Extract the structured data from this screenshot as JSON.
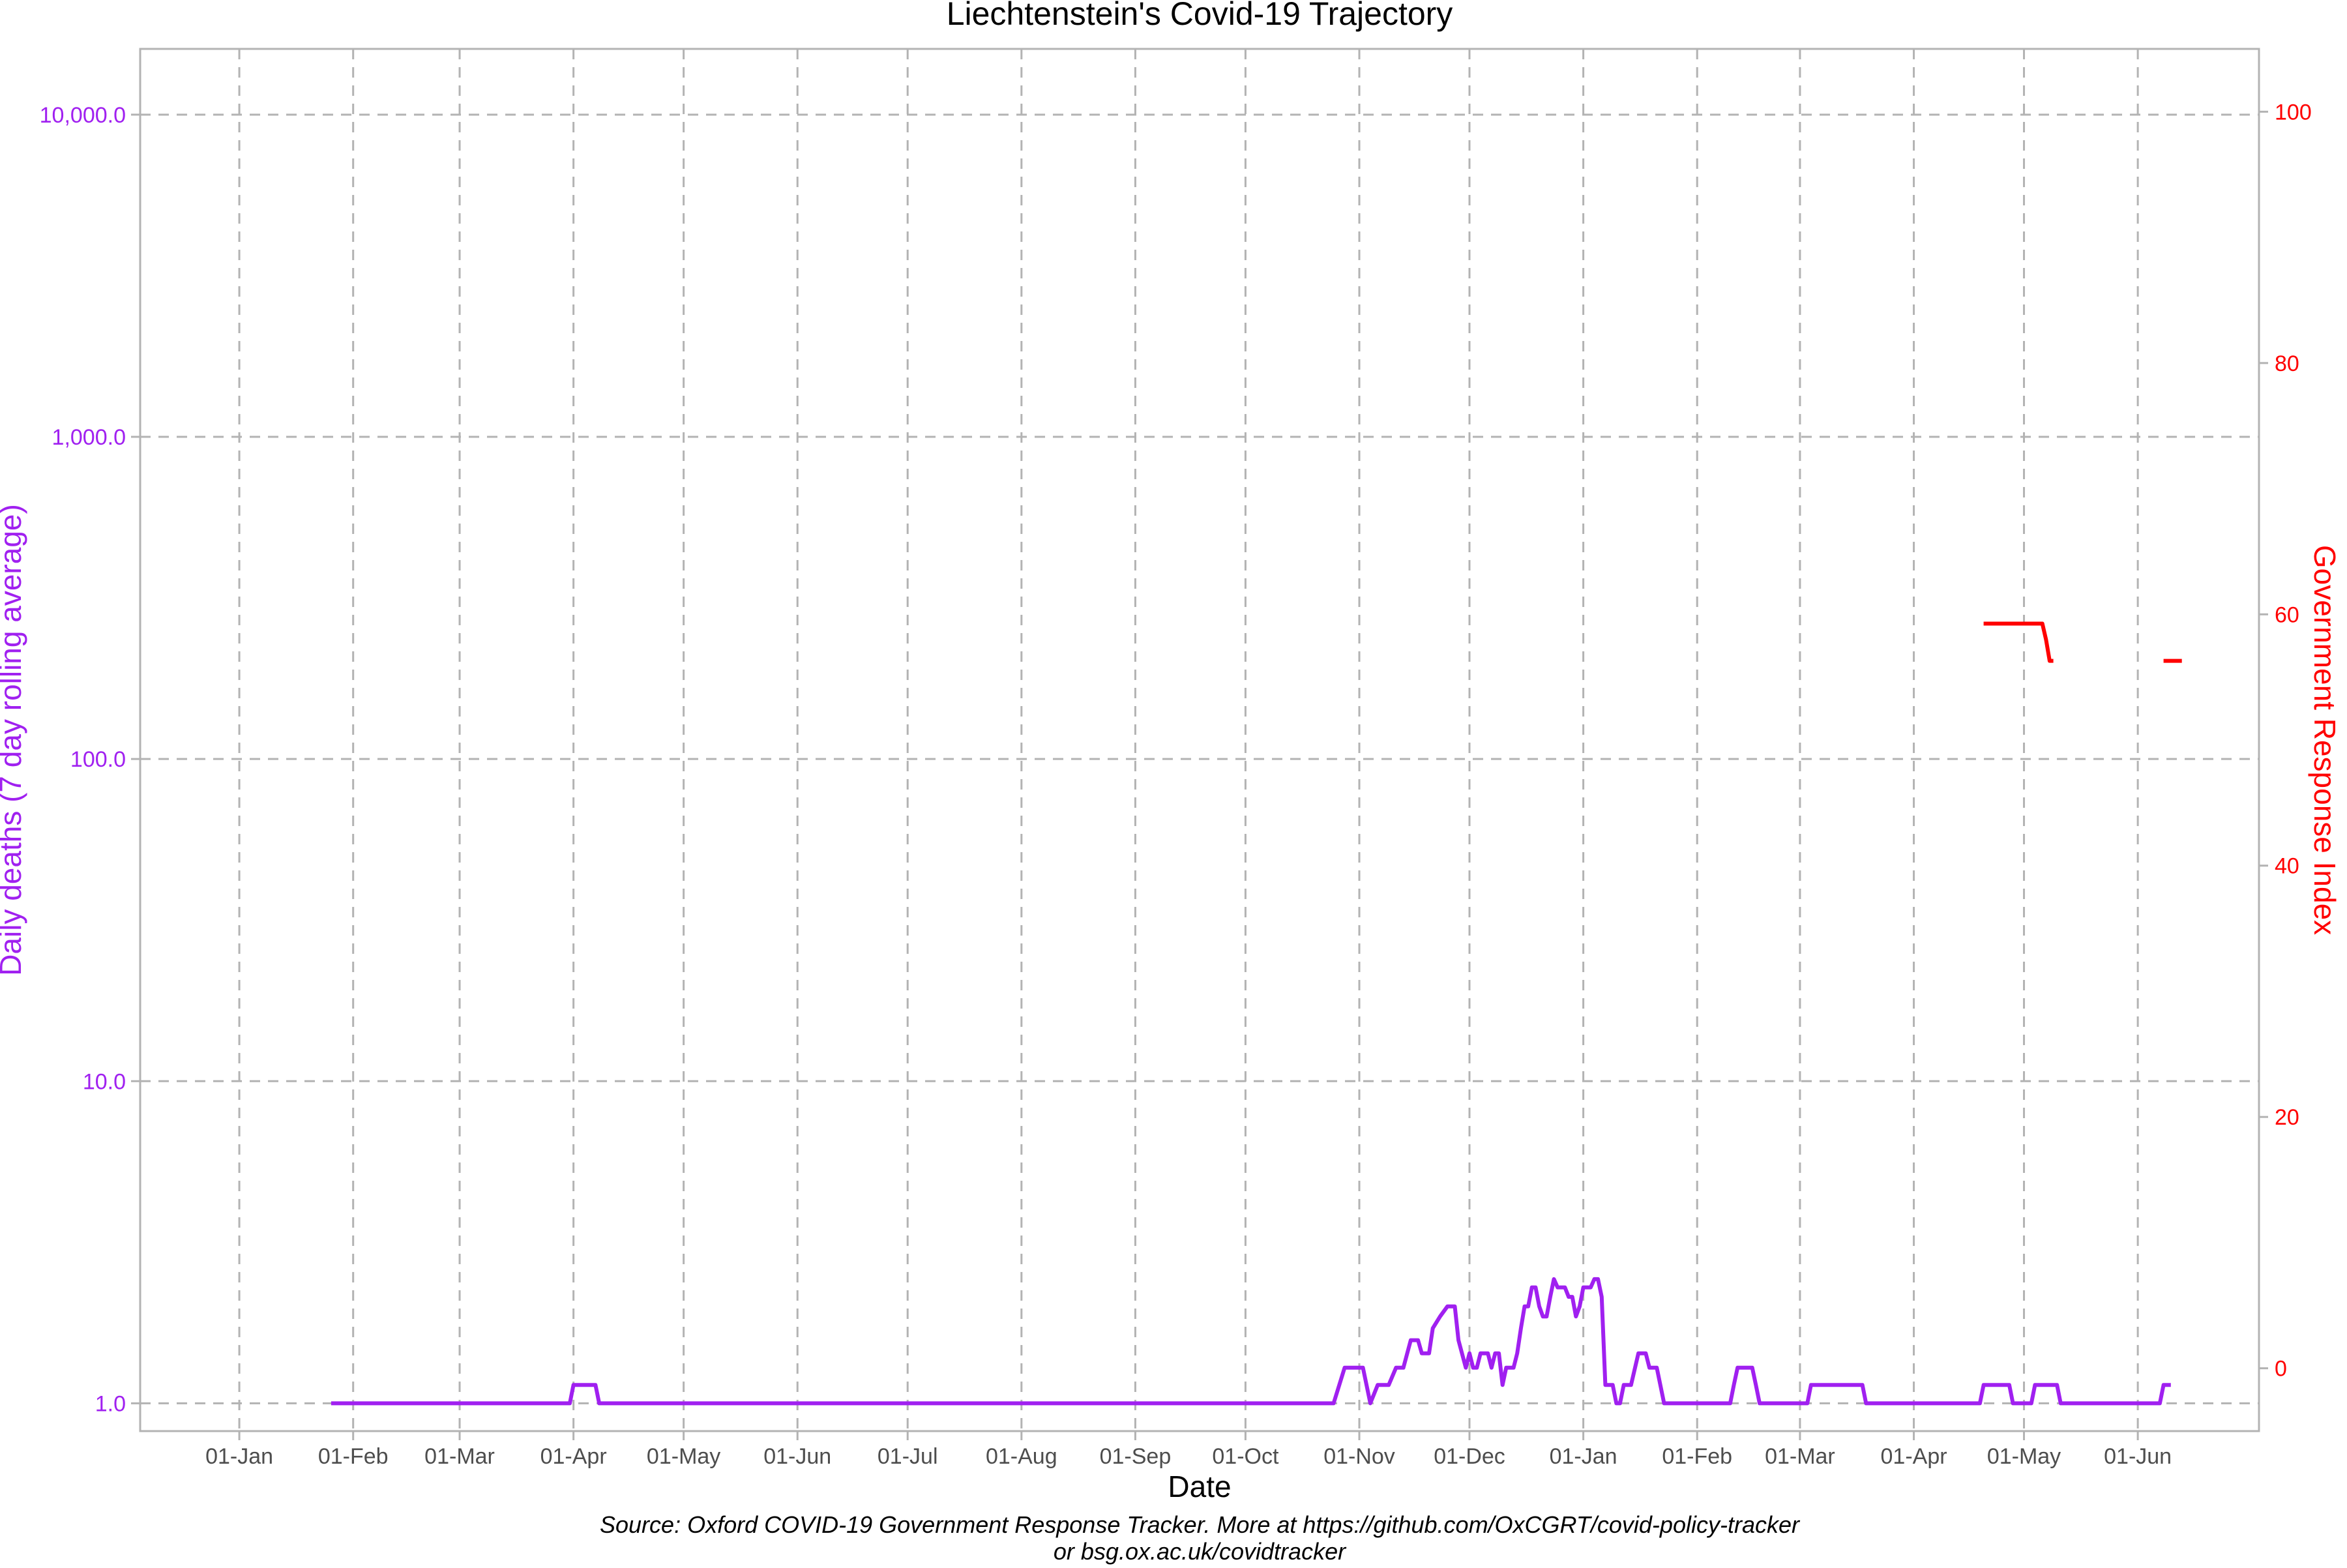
{
  "chart_data": {
    "type": "line",
    "title": "Liechtenstein's Covid-19 Trajectory",
    "xlabel": "Date",
    "ylabel_left": "Daily deaths (7 day rolling average)",
    "ylabel_right": "Government Response Index",
    "caption_line1": "Source: Oxford COVID-19 Government Response Tracker. More at https://github.com/OxCGRT/covid-policy-tracker",
    "caption_line2": "or bsg.ox.ac.uk/covidtracker",
    "x_axis": {
      "range": [
        "2019-12-05",
        "2021-07-04"
      ],
      "ticks": [
        {
          "date": "2020-01-01",
          "label": "01-Jan"
        },
        {
          "date": "2020-02-01",
          "label": "01-Feb"
        },
        {
          "date": "2020-03-01",
          "label": "01-Mar"
        },
        {
          "date": "2020-04-01",
          "label": "01-Apr"
        },
        {
          "date": "2020-05-01",
          "label": "01-May"
        },
        {
          "date": "2020-06-01",
          "label": "01-Jun"
        },
        {
          "date": "2020-07-01",
          "label": "01-Jul"
        },
        {
          "date": "2020-08-01",
          "label": "01-Aug"
        },
        {
          "date": "2020-09-01",
          "label": "01-Sep"
        },
        {
          "date": "2020-10-01",
          "label": "01-Oct"
        },
        {
          "date": "2020-11-01",
          "label": "01-Nov"
        },
        {
          "date": "2020-12-01",
          "label": "01-Dec"
        },
        {
          "date": "2021-01-01",
          "label": "01-Jan"
        },
        {
          "date": "2021-02-01",
          "label": "01-Feb"
        },
        {
          "date": "2021-03-01",
          "label": "01-Mar"
        },
        {
          "date": "2021-04-01",
          "label": "01-Apr"
        },
        {
          "date": "2021-05-01",
          "label": "01-May"
        },
        {
          "date": "2021-06-01",
          "label": "01-Jun"
        }
      ]
    },
    "y_left": {
      "scale": "log10",
      "range": [
        0.82,
        16000
      ],
      "ticks": [
        1,
        10,
        100,
        1000,
        10000
      ],
      "tick_labels": [
        "1.0",
        "10.0",
        "100.0",
        "1,000.0",
        "10,000.0"
      ],
      "color": "#a020f0"
    },
    "y_right": {
      "scale": "linear",
      "range": [
        -5,
        105
      ],
      "ticks": [
        0,
        20,
        40,
        60,
        80,
        100
      ],
      "tick_labels": [
        "0",
        "20",
        "40",
        "60",
        "80",
        "100"
      ],
      "color": "#ff0000"
    },
    "series": [
      {
        "axis": "left",
        "color": "#a020f0",
        "points": [
          [
            "2020-01-26",
            1.0
          ],
          [
            "2020-03-31",
            1.0
          ],
          [
            "2020-04-01",
            1.14
          ],
          [
            "2020-04-07",
            1.14
          ],
          [
            "2020-04-08",
            1.0
          ],
          [
            "2020-10-25",
            1.0
          ],
          [
            "2020-10-28",
            1.29
          ],
          [
            "2020-11-02",
            1.29
          ],
          [
            "2020-11-04",
            1.0
          ],
          [
            "2020-11-06",
            1.14
          ],
          [
            "2020-11-09",
            1.14
          ],
          [
            "2020-11-11",
            1.29
          ],
          [
            "2020-11-13",
            1.29
          ],
          [
            "2020-11-15",
            1.57
          ],
          [
            "2020-11-17",
            1.57
          ],
          [
            "2020-11-18",
            1.43
          ],
          [
            "2020-11-20",
            1.43
          ],
          [
            "2020-11-21",
            1.71
          ],
          [
            "2020-11-23",
            1.86
          ],
          [
            "2020-11-25",
            2.0
          ],
          [
            "2020-11-27",
            2.0
          ],
          [
            "2020-11-28",
            1.57
          ],
          [
            "2020-11-30",
            1.29
          ],
          [
            "2020-12-01",
            1.43
          ],
          [
            "2020-12-02",
            1.29
          ],
          [
            "2020-12-03",
            1.29
          ],
          [
            "2020-12-04",
            1.43
          ],
          [
            "2020-12-06",
            1.43
          ],
          [
            "2020-12-07",
            1.29
          ],
          [
            "2020-12-08",
            1.43
          ],
          [
            "2020-12-09",
            1.43
          ],
          [
            "2020-12-10",
            1.14
          ],
          [
            "2020-12-11",
            1.29
          ],
          [
            "2020-12-13",
            1.29
          ],
          [
            "2020-12-14",
            1.43
          ],
          [
            "2020-12-15",
            1.71
          ],
          [
            "2020-12-16",
            2.0
          ],
          [
            "2020-12-17",
            2.0
          ],
          [
            "2020-12-18",
            2.29
          ],
          [
            "2020-12-19",
            2.29
          ],
          [
            "2020-12-20",
            2.0
          ],
          [
            "2020-12-21",
            1.86
          ],
          [
            "2020-12-22",
            1.86
          ],
          [
            "2020-12-23",
            2.14
          ],
          [
            "2020-12-24",
            2.43
          ],
          [
            "2020-12-25",
            2.29
          ],
          [
            "2020-12-27",
            2.29
          ],
          [
            "2020-12-28",
            2.14
          ],
          [
            "2020-12-29",
            2.14
          ],
          [
            "2020-12-30",
            1.86
          ],
          [
            "2020-12-31",
            2.0
          ],
          [
            "2021-01-01",
            2.29
          ],
          [
            "2021-01-03",
            2.29
          ],
          [
            "2021-01-04",
            2.43
          ],
          [
            "2021-01-05",
            2.43
          ],
          [
            "2021-01-06",
            2.14
          ],
          [
            "2021-01-07",
            1.14
          ],
          [
            "2021-01-09",
            1.14
          ],
          [
            "2021-01-10",
            1.0
          ],
          [
            "2021-01-11",
            1.0
          ],
          [
            "2021-01-12",
            1.14
          ],
          [
            "2021-01-14",
            1.14
          ],
          [
            "2021-01-16",
            1.43
          ],
          [
            "2021-01-18",
            1.43
          ],
          [
            "2021-01-19",
            1.29
          ],
          [
            "2021-01-21",
            1.29
          ],
          [
            "2021-01-23",
            1.0
          ],
          [
            "2021-02-10",
            1.0
          ],
          [
            "2021-02-11",
            1.14
          ],
          [
            "2021-02-12",
            1.29
          ],
          [
            "2021-02-16",
            1.29
          ],
          [
            "2021-02-17",
            1.14
          ],
          [
            "2021-02-18",
            1.0
          ],
          [
            "2021-03-03",
            1.0
          ],
          [
            "2021-03-04",
            1.14
          ],
          [
            "2021-03-18",
            1.14
          ],
          [
            "2021-03-19",
            1.0
          ],
          [
            "2021-04-19",
            1.0
          ],
          [
            "2021-04-20",
            1.14
          ],
          [
            "2021-04-27",
            1.14
          ],
          [
            "2021-04-28",
            1.0
          ],
          [
            "2021-05-03",
            1.0
          ],
          [
            "2021-05-04",
            1.14
          ],
          [
            "2021-05-10",
            1.14
          ],
          [
            "2021-05-11",
            1.0
          ],
          [
            "2021-06-07",
            1.0
          ],
          [
            "2021-06-08",
            1.14
          ],
          [
            "2021-06-10",
            1.14
          ]
        ]
      },
      {
        "axis": "right",
        "color": "#ff0000",
        "segments": [
          [
            [
              "2021-04-20",
              59.26
            ],
            [
              "2021-05-06",
              59.26
            ],
            [
              "2021-05-07",
              58.0
            ],
            [
              "2021-05-08",
              56.3
            ],
            [
              "2021-05-09",
              56.3
            ]
          ],
          [
            [
              "2021-06-08",
              56.3
            ],
            [
              "2021-06-13",
              56.3
            ]
          ]
        ]
      }
    ],
    "grid": true,
    "legend": "none"
  }
}
